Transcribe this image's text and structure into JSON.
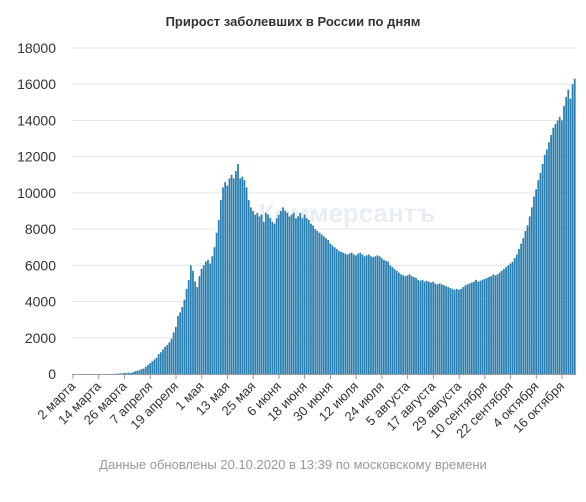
{
  "title": "Прирост заболевших в России по дням",
  "watermark": "Коммерсантъ",
  "footer": "Данные обновлены 20.10.2020 в 13:39 по московскому времени",
  "colors": {
    "bar": "#2a7fb0",
    "grid": "#e6e6e6",
    "axis": "#999999",
    "text": "#333333"
  },
  "chart_data": {
    "type": "bar",
    "title": "Прирост заболевших в России по дням",
    "xlabel": "",
    "ylabel": "",
    "ylim": [
      0,
      18000
    ],
    "yticks": [
      0,
      2000,
      4000,
      6000,
      8000,
      10000,
      12000,
      14000,
      16000,
      18000
    ],
    "grid": true,
    "legend": "none",
    "x_range": [
      "2 марта",
      "20 октября"
    ],
    "x_tick_labels": [
      "2 марта",
      "14 марта",
      "26 марта",
      "7 апреля",
      "19 апреля",
      "1 мая",
      "13 мая",
      "25 мая",
      "6 июня",
      "18 июня",
      "30 июня",
      "12 июля",
      "24 июля",
      "5 августа",
      "17 августа",
      "29 августа",
      "10 сентября",
      "22 сентября",
      "4 октября",
      "16 октября"
    ],
    "series": [
      {
        "values": [
          0,
          0,
          0,
          0,
          0,
          0,
          0,
          0,
          0,
          0,
          0,
          0,
          0,
          0,
          0,
          0,
          0,
          0,
          1,
          8,
          10,
          20,
          30,
          40,
          53,
          57,
          71,
          60,
          100,
          150,
          180,
          200,
          270,
          300,
          400,
          500,
          600,
          700,
          800,
          900,
          1100,
          1200,
          1350,
          1500,
          1600,
          1750,
          1950,
          2300,
          2600,
          3200,
          3400,
          3700,
          4100,
          4700,
          5200,
          6000,
          5700,
          5100,
          4800,
          5400,
          5800,
          6000,
          6200,
          6300,
          6100,
          6500,
          7000,
          7800,
          8500,
          9600,
          10300,
          10600,
          10400,
          10800,
          11000,
          10800,
          11200,
          11600,
          10800,
          10900,
          10700,
          10300,
          9600,
          9200,
          9000,
          8800,
          8900,
          8700,
          8800,
          8400,
          8900,
          8800,
          8600,
          8400,
          8300,
          8600,
          8800,
          9000,
          9200,
          9000,
          8900,
          8700,
          8800,
          8900,
          8600,
          8700,
          8900,
          8600,
          8800,
          8600,
          8500,
          8300,
          8200,
          8000,
          7900,
          7800,
          7700,
          7600,
          7500,
          7400,
          7200,
          7100,
          7000,
          6900,
          6800,
          6750,
          6700,
          6650,
          6600,
          6650,
          6700,
          6600,
          6550,
          6650,
          6700,
          6600,
          6500,
          6550,
          6600,
          6500,
          6450,
          6500,
          6550,
          6500,
          6400,
          6300,
          6250,
          6200,
          6000,
          5900,
          5800,
          5700,
          5600,
          5500,
          5450,
          5400,
          5450,
          5500,
          5400,
          5350,
          5300,
          5200,
          5150,
          5200,
          5100,
          5150,
          5100,
          5050,
          5100,
          5000,
          4950,
          5000,
          4950,
          4900,
          4850,
          4800,
          4750,
          4700,
          4650,
          4700,
          4650,
          4700,
          4800,
          4900,
          4950,
          5000,
          5050,
          5100,
          5200,
          5100,
          5150,
          5200,
          5250,
          5300,
          5350,
          5400,
          5500,
          5450,
          5500,
          5600,
          5700,
          5800,
          5900,
          6000,
          6100,
          6200,
          6400,
          6600,
          6900,
          7200,
          7500,
          7900,
          8200,
          8700,
          9200,
          9800,
          10200,
          10700,
          11100,
          11600,
          12100,
          12400,
          12800,
          13200,
          13600,
          13800,
          14000,
          14200,
          14000,
          14800,
          15300,
          15700,
          15200,
          16000,
          16300
        ]
      }
    ]
  }
}
